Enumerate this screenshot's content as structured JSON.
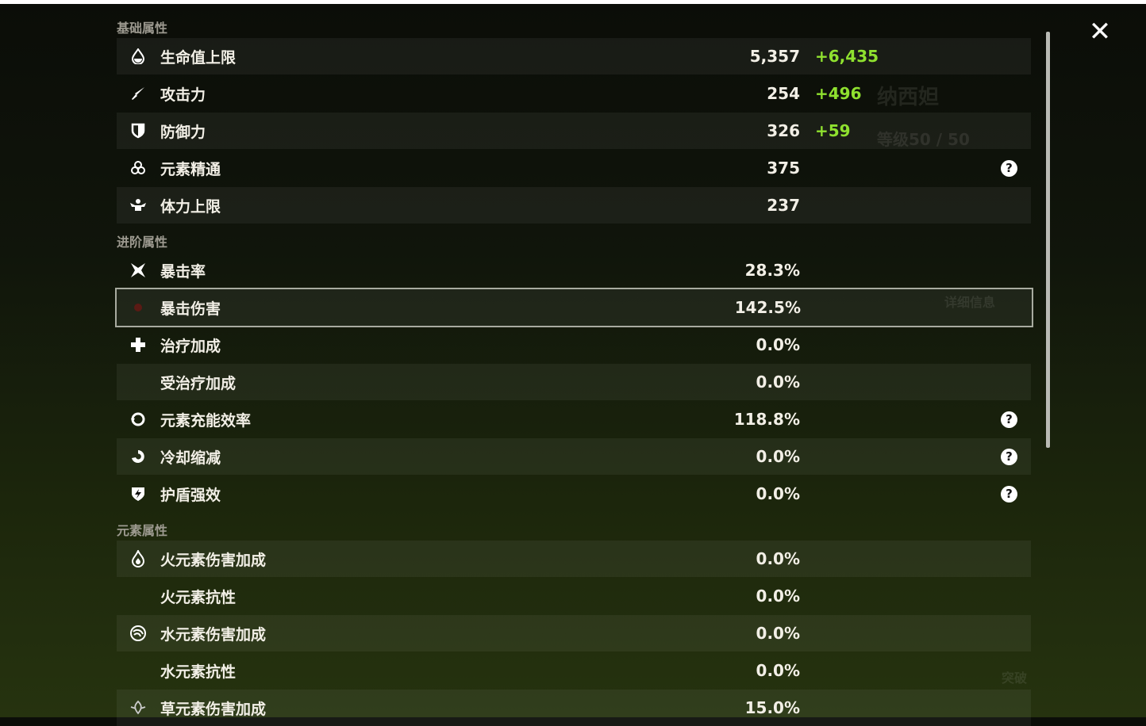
{
  "background": {
    "name": "纳西妲",
    "level": "等级50 / 50",
    "details_button": "详细信息",
    "ascend_button": "突破"
  },
  "sections": [
    {
      "title": "基础属性",
      "rows": [
        {
          "icon": "hp-drop-icon",
          "label": "生命值上限",
          "value": "5,357",
          "bonus": "+6,435"
        },
        {
          "icon": "sword-icon",
          "label": "攻击力",
          "value": "254",
          "bonus": "+496"
        },
        {
          "icon": "shield-icon",
          "label": "防御力",
          "value": "326",
          "bonus": "+59"
        },
        {
          "icon": "elemental-mastery-icon",
          "label": "元素精通",
          "value": "375",
          "help": true
        },
        {
          "icon": "stamina-icon",
          "label": "体力上限",
          "value": "237"
        }
      ]
    },
    {
      "title": "进阶属性",
      "rows": [
        {
          "icon": "crit-rate-icon",
          "label": "暴击率",
          "value": "28.3%"
        },
        {
          "icon": "crit-dmg-icon",
          "label": "暴击伤害",
          "value": "142.5%",
          "selected": true
        },
        {
          "icon": "healing-cross-icon",
          "label": "治疗加成",
          "value": "0.0%"
        },
        {
          "icon": "",
          "label": "受治疗加成",
          "value": "0.0%"
        },
        {
          "icon": "energy-recharge-icon",
          "label": "元素充能效率",
          "value": "118.8%",
          "help": true
        },
        {
          "icon": "cooldown-icon",
          "label": "冷却缩减",
          "value": "0.0%",
          "help": true
        },
        {
          "icon": "shield-strength-icon",
          "label": "护盾强效",
          "value": "0.0%",
          "help": true
        }
      ]
    },
    {
      "title": "元素属性",
      "rows": [
        {
          "icon": "pyro-icon",
          "label": "火元素伤害加成",
          "value": "0.0%"
        },
        {
          "icon": "",
          "label": "火元素抗性",
          "value": "0.0%"
        },
        {
          "icon": "hydro-icon",
          "label": "水元素伤害加成",
          "value": "0.0%"
        },
        {
          "icon": "",
          "label": "水元素抗性",
          "value": "0.0%"
        },
        {
          "icon": "dendro-icon",
          "label": "草元素伤害加成",
          "value": "15.0%"
        }
      ]
    }
  ],
  "help_glyph": "?",
  "close_glyph": "✕",
  "colors": {
    "bonus": "#8fe12f",
    "selected_border": "#a8aba0"
  }
}
